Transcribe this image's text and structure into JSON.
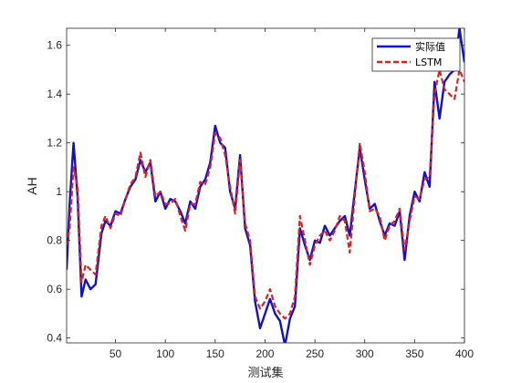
{
  "chart_data": {
    "type": "line",
    "xlabel": "测试集",
    "ylabel": "AH",
    "xlim": [
      1,
      400
    ],
    "ylim": [
      0.38,
      1.67
    ],
    "xticks": [
      50,
      100,
      150,
      200,
      250,
      300,
      350,
      400
    ],
    "yticks": [
      0.4,
      0.6,
      0.8,
      1.0,
      1.2,
      1.4,
      1.6
    ],
    "ytick_labels": [
      "0.4",
      "0.6",
      "0.8",
      "1",
      "1.2",
      "1.4",
      "1.6"
    ],
    "grid": false,
    "legend_position": "top-right",
    "series": [
      {
        "name": "实际值",
        "color": "#1010d0",
        "style": "solid",
        "x": [
          1,
          4,
          8,
          12,
          16,
          20,
          25,
          30,
          36,
          40,
          45,
          50,
          55,
          60,
          65,
          70,
          75,
          80,
          85,
          90,
          95,
          100,
          105,
          110,
          115,
          120,
          125,
          130,
          135,
          140,
          145,
          150,
          155,
          160,
          165,
          170,
          175,
          180,
          185,
          190,
          195,
          200,
          205,
          210,
          215,
          220,
          225,
          230,
          235,
          240,
          245,
          250,
          255,
          260,
          265,
          270,
          275,
          280,
          285,
          290,
          295,
          300,
          305,
          310,
          315,
          320,
          325,
          330,
          335,
          340,
          345,
          350,
          355,
          360,
          365,
          370,
          375,
          380,
          385,
          390,
          395,
          400
        ],
        "values": [
          0.68,
          0.95,
          1.2,
          0.98,
          0.57,
          0.64,
          0.6,
          0.62,
          0.83,
          0.88,
          0.86,
          0.92,
          0.91,
          0.97,
          1.02,
          1.05,
          1.13,
          1.08,
          1.12,
          0.96,
          1.0,
          0.93,
          0.97,
          0.96,
          0.92,
          0.87,
          0.96,
          0.93,
          1.02,
          1.05,
          1.12,
          1.27,
          1.2,
          1.18,
          1.0,
          0.93,
          1.15,
          0.85,
          0.78,
          0.55,
          0.44,
          0.5,
          0.56,
          0.5,
          0.47,
          0.37,
          0.48,
          0.53,
          0.85,
          0.78,
          0.72,
          0.8,
          0.79,
          0.86,
          0.82,
          0.85,
          0.88,
          0.9,
          0.82,
          1.0,
          1.18,
          1.05,
          0.93,
          0.95,
          0.88,
          0.82,
          0.87,
          0.86,
          0.92,
          0.72,
          0.9,
          1.0,
          0.96,
          1.08,
          1.02,
          1.45,
          1.3,
          1.45,
          1.48,
          1.5,
          1.67,
          1.53
        ]
      },
      {
        "name": "LSTM",
        "color": "#e02020",
        "style": "dashed",
        "x": [
          1,
          4,
          8,
          12,
          16,
          20,
          25,
          30,
          36,
          40,
          45,
          50,
          55,
          60,
          65,
          70,
          75,
          80,
          85,
          90,
          95,
          100,
          105,
          110,
          115,
          120,
          125,
          130,
          135,
          140,
          145,
          150,
          155,
          160,
          165,
          170,
          175,
          180,
          185,
          190,
          195,
          200,
          205,
          210,
          215,
          220,
          225,
          230,
          235,
          240,
          245,
          250,
          255,
          260,
          265,
          270,
          275,
          280,
          285,
          290,
          295,
          300,
          305,
          310,
          315,
          320,
          325,
          330,
          335,
          340,
          345,
          350,
          355,
          360,
          365,
          370,
          375,
          380,
          385,
          390,
          395,
          400
        ],
        "values": [
          0.78,
          0.85,
          1.1,
          1.02,
          0.63,
          0.7,
          0.68,
          0.66,
          0.86,
          0.9,
          0.85,
          0.91,
          0.9,
          0.97,
          1.03,
          1.06,
          1.16,
          1.06,
          1.13,
          0.98,
          1.0,
          0.95,
          0.95,
          0.97,
          0.9,
          0.84,
          0.95,
          0.95,
          1.04,
          1.03,
          1.1,
          1.24,
          1.22,
          1.15,
          1.02,
          0.91,
          1.13,
          0.87,
          0.8,
          0.57,
          0.52,
          0.55,
          0.6,
          0.53,
          0.5,
          0.48,
          0.5,
          0.57,
          0.9,
          0.8,
          0.7,
          0.78,
          0.82,
          0.84,
          0.8,
          0.84,
          0.9,
          0.88,
          0.75,
          0.98,
          1.2,
          1.08,
          0.92,
          0.93,
          0.9,
          0.8,
          0.86,
          0.88,
          0.93,
          0.76,
          0.88,
          0.98,
          0.97,
          1.05,
          1.06,
          1.4,
          1.5,
          1.42,
          1.4,
          1.38,
          1.5,
          1.45
        ]
      }
    ]
  }
}
